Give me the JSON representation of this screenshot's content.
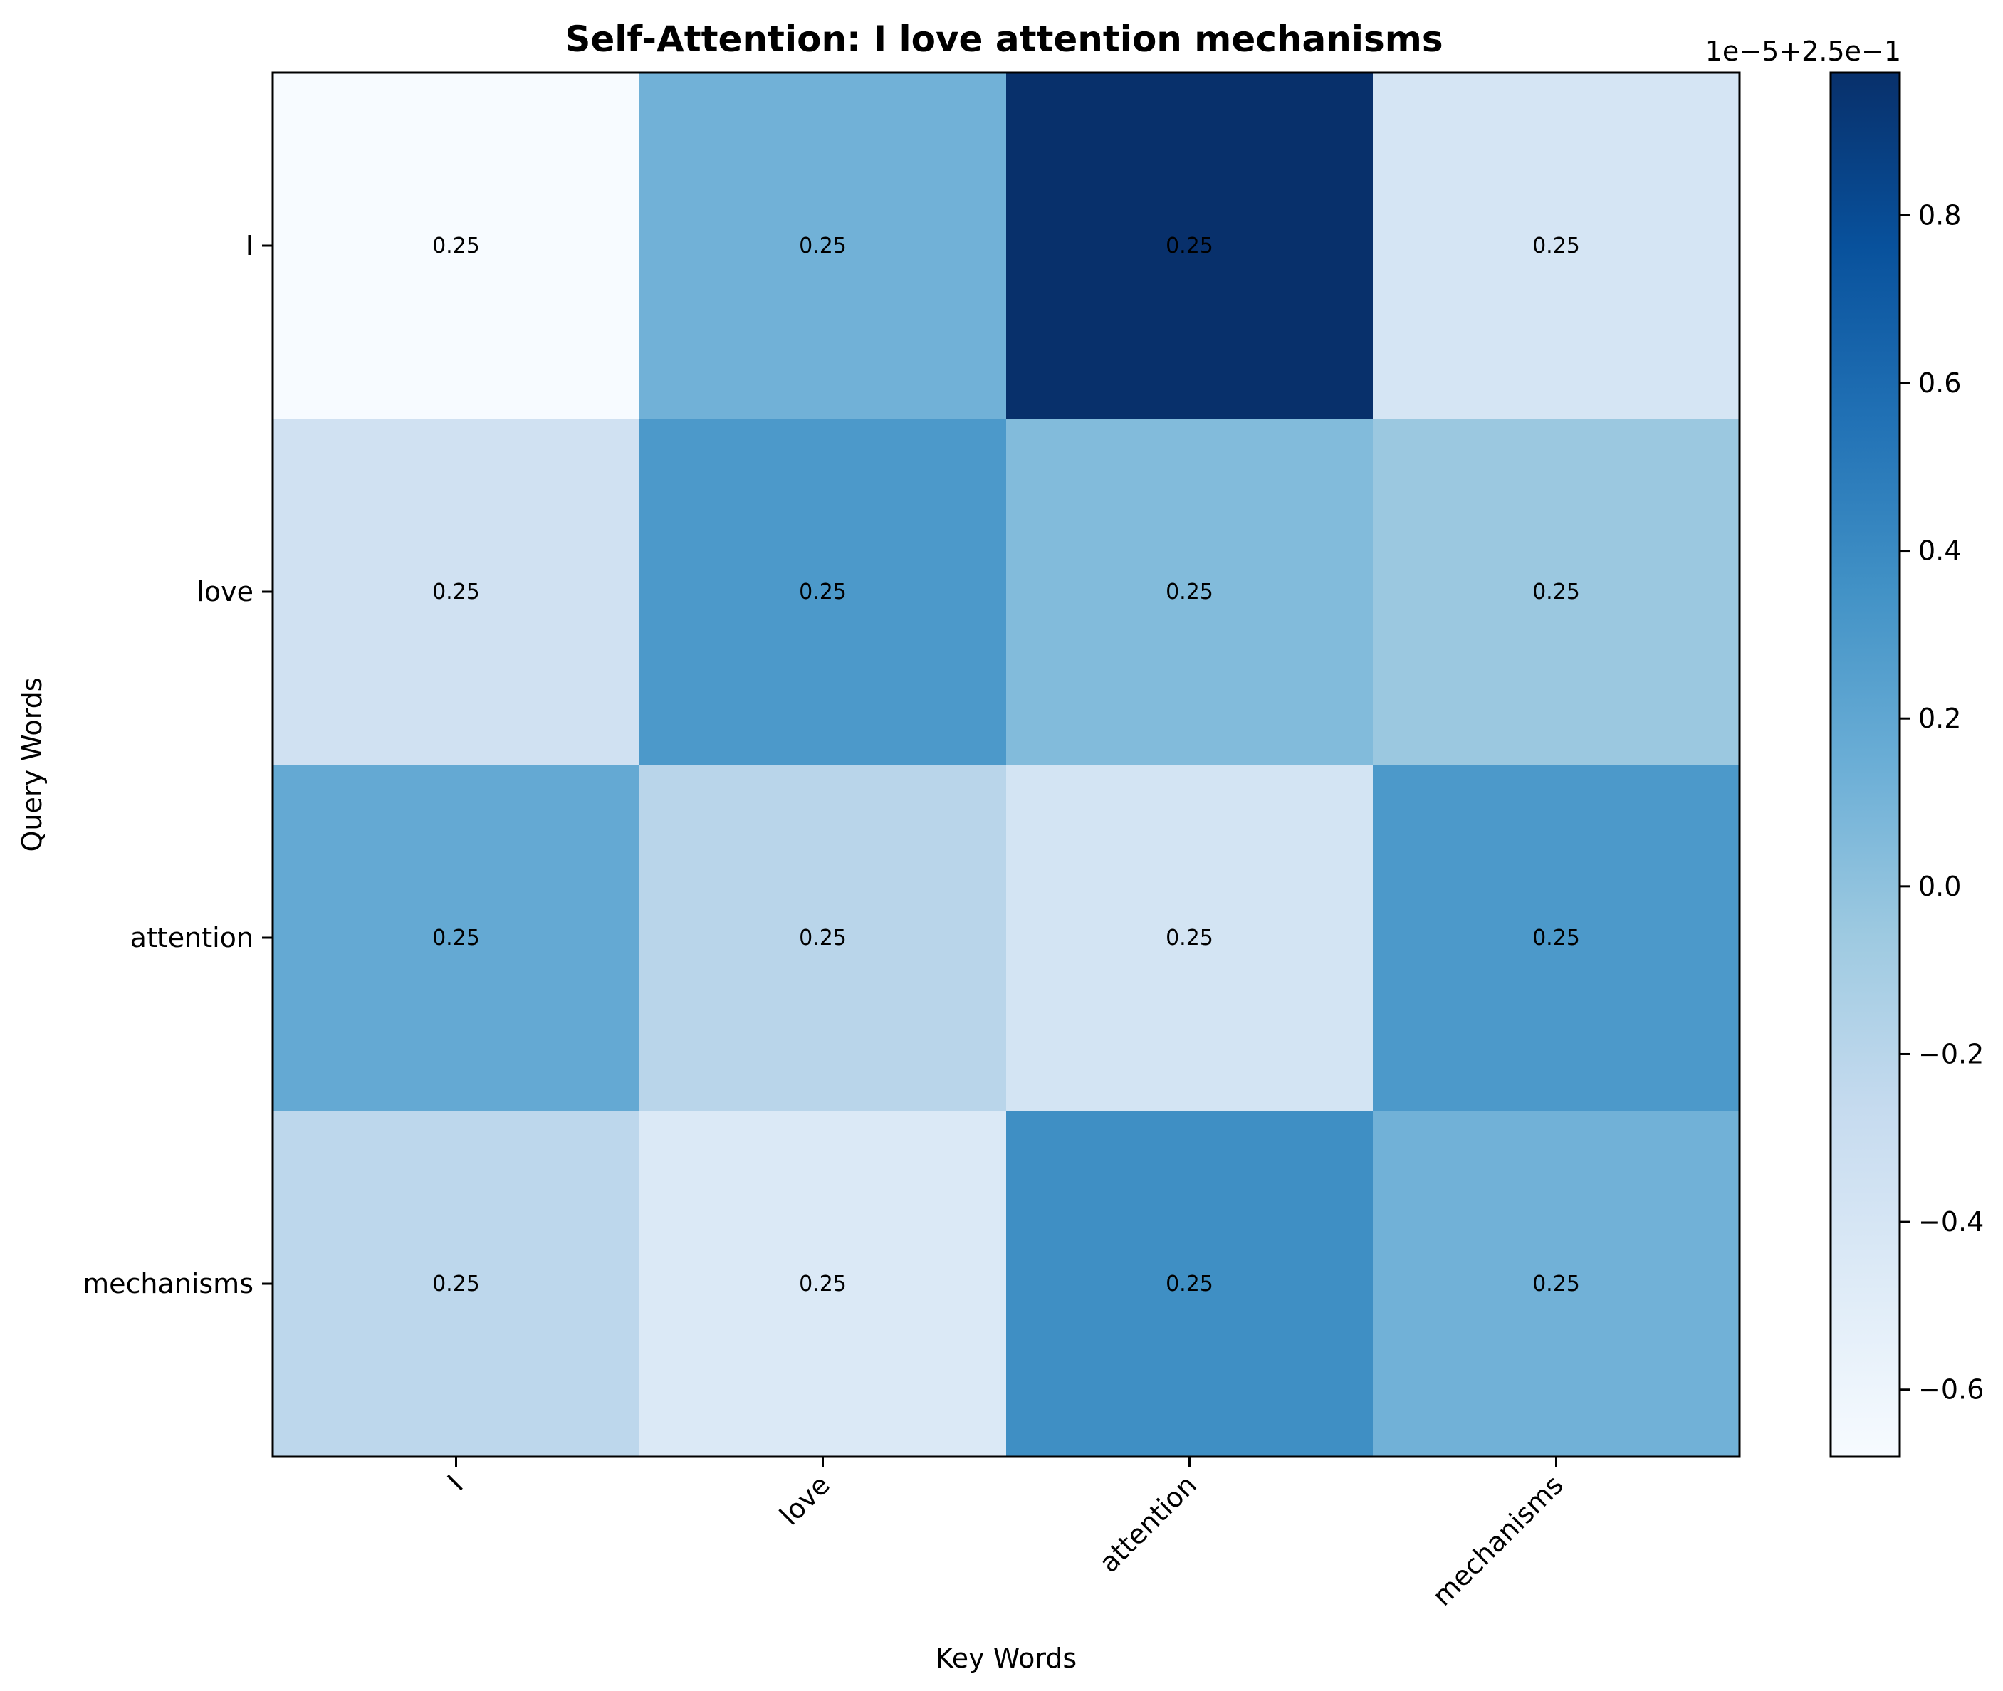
{
  "chart_data": {
    "type": "heatmap",
    "title": "Self-Attention: I love attention mechanisms",
    "xlabel": "Key Words",
    "ylabel": "Query Words",
    "x_categories": [
      "I",
      "love",
      "attention",
      "mechanisms"
    ],
    "y_categories": [
      "I",
      "love",
      "attention",
      "mechanisms"
    ],
    "values": [
      [
        -0.68,
        0.12,
        0.97,
        -0.4
      ],
      [
        -0.35,
        0.3,
        0.05,
        -0.05
      ],
      [
        0.18,
        -0.2,
        -0.38,
        0.3
      ],
      [
        -0.22,
        -0.45,
        0.37,
        0.12
      ]
    ],
    "cell_labels": [
      [
        "0.25",
        "0.25",
        "0.25",
        "0.25"
      ],
      [
        "0.25",
        "0.25",
        "0.25",
        "0.25"
      ],
      [
        "0.25",
        "0.25",
        "0.25",
        "0.25"
      ],
      [
        "0.25",
        "0.25",
        "0.25",
        "0.25"
      ]
    ],
    "colormap": "Blues",
    "colorbar": {
      "range": [
        -0.68,
        0.97
      ],
      "ticks": [
        -0.6,
        -0.4,
        -0.2,
        0.0,
        0.2,
        0.4,
        0.6,
        0.8
      ],
      "tick_labels": [
        "−0.6",
        "−0.4",
        "−0.2",
        "0.0",
        "0.2",
        "0.4",
        "0.6",
        "0.8"
      ],
      "offset_label": "1e−5+2.5e−1"
    },
    "grid": false,
    "legend": "colorbar-right"
  }
}
